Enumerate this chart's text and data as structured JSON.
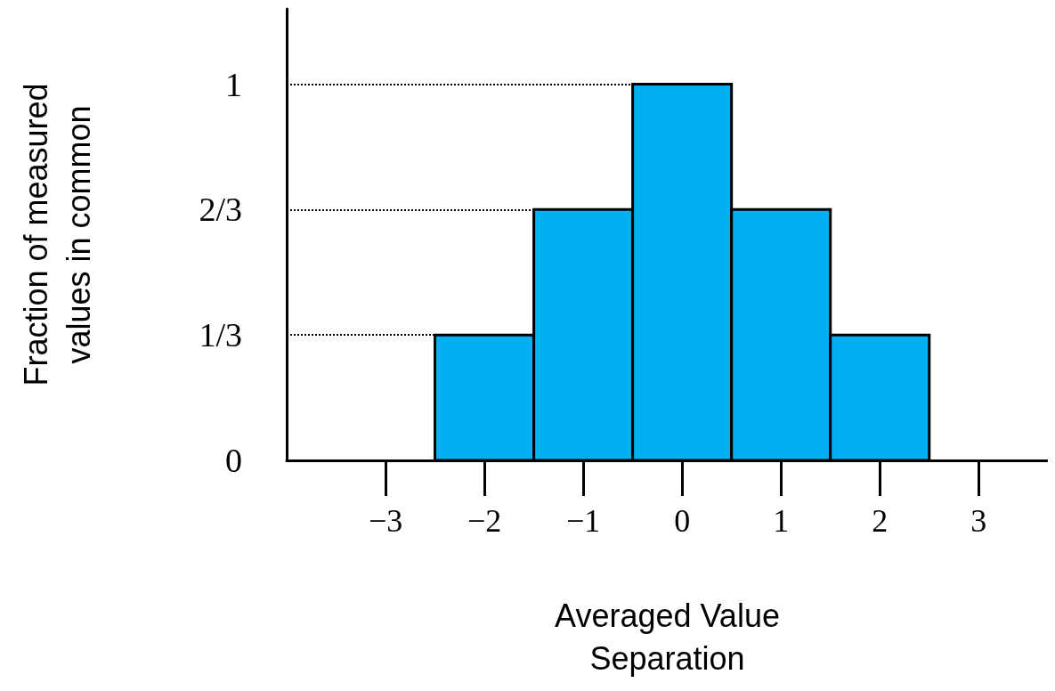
{
  "chart_data": {
    "type": "histogram",
    "xlabel": "Averaged Value\nSeparation",
    "ylabel": "Fraction of measured\nvalues in common",
    "bins": [
      -2.5,
      -1.5,
      -0.5,
      0.5,
      1.5,
      2.5
    ],
    "values": [
      0.3333,
      0.6667,
      1,
      0.6667,
      0.3333
    ],
    "color": "#00b0f0",
    "xlim": [
      -4,
      3.7
    ],
    "xticks": [
      {
        "value": -3,
        "label": "−3"
      },
      {
        "value": -2,
        "label": "−2"
      },
      {
        "value": -1,
        "label": "−1"
      },
      0,
      1,
      2,
      3
    ],
    "ylim": [
      0,
      1.2
    ],
    "yticks": [
      0,
      {
        "value": 0.3333,
        "label": "1/3"
      },
      {
        "value": 0.6667,
        "label": "2/3"
      },
      1
    ],
    "ref_lines": [
      {
        "axis": "y",
        "value": 0.3333,
        "line_style": "dotted",
        "color": "#000000"
      },
      {
        "axis": "y",
        "value": 0.6667,
        "line_style": "dotted",
        "color": "#000000"
      },
      {
        "axis": "y",
        "value": 1,
        "line_style": "dotted",
        "color": "#000000"
      }
    ]
  }
}
